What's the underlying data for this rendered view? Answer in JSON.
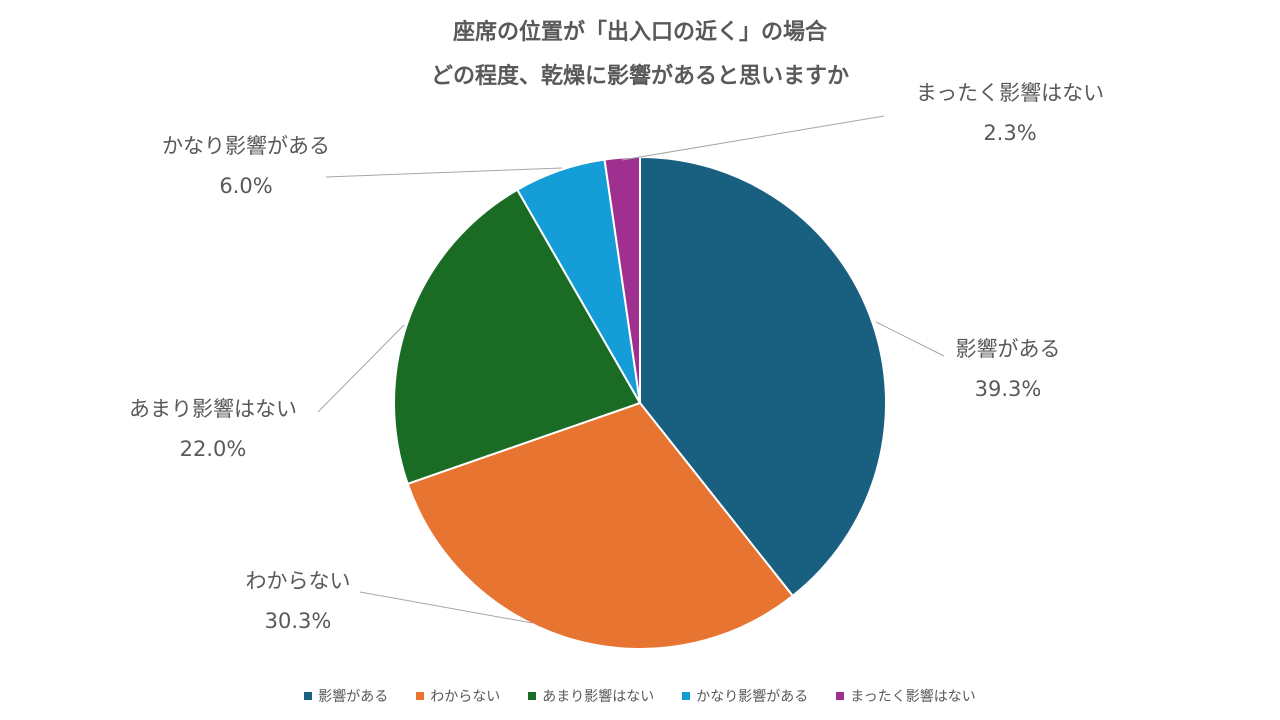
{
  "chart_data": {
    "type": "pie",
    "title_lines": [
      "座席の位置が「出入口の近く」の場合",
      "どの程度、乾燥に影響があると思いますか"
    ],
    "slices": [
      {
        "name": "影響がある",
        "value": 39.3,
        "label": "39.3%",
        "color": "#185F80"
      },
      {
        "name": "わからない",
        "value": 30.3,
        "label": "30.3%",
        "color": "#E87432"
      },
      {
        "name": "あまり影響はない",
        "value": 22.0,
        "label": "22.0%",
        "color": "#1A6B23"
      },
      {
        "name": "かなり影響がある",
        "value": 6.0,
        "label": "6.0%",
        "color": "#149DD6"
      },
      {
        "name": "まったく影響はない",
        "value": 2.3,
        "label": "2.3%",
        "color": "#A0308F"
      }
    ],
    "legend": {
      "position": "bottom",
      "entries": [
        "影響がある",
        "わからない",
        "あまり影響はない",
        "かなり影響がある",
        "まったく影響はない"
      ]
    }
  }
}
